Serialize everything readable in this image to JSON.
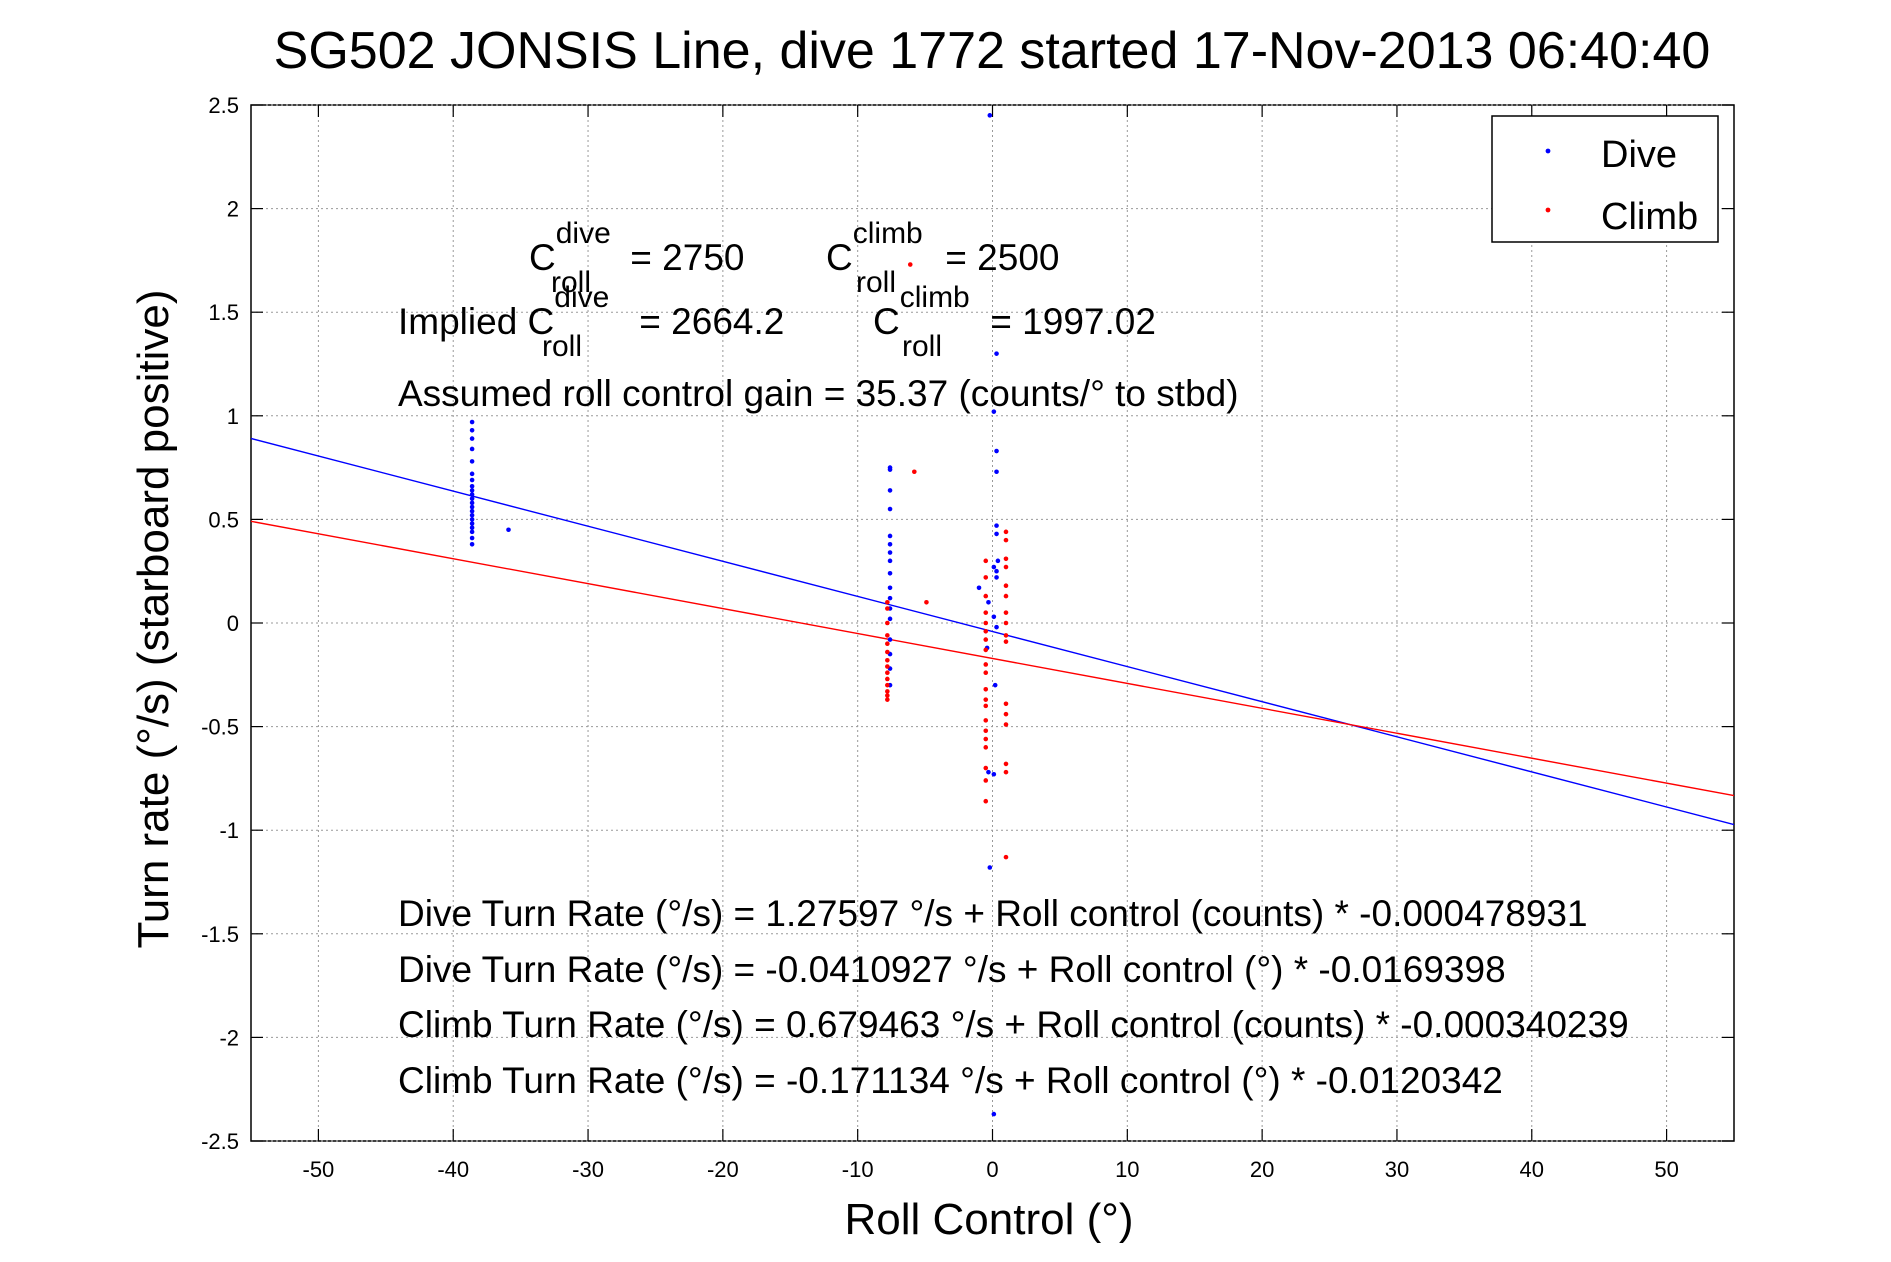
{
  "chart_data": {
    "type": "scatter",
    "title": "SG502 JONSIS Line, dive 1772 started 17-Nov-2013 06:40:40",
    "xlabel": "Roll Control (°)",
    "ylabel": "Turn rate (°/s) (starboard positive)",
    "xlim": [
      -55,
      55
    ],
    "ylim": [
      -2.5,
      2.5
    ],
    "x_ticks": [
      "-50",
      "-40",
      "-30",
      "-20",
      "-10",
      "0",
      "10",
      "20",
      "30",
      "40",
      "50"
    ],
    "y_ticks": [
      "2.5",
      "2",
      "1.5",
      "1",
      "0.5",
      "0",
      "-0.5",
      "-1",
      "-1.5",
      "-2",
      "-2.5"
    ],
    "grid": true,
    "legend_position": "top-right",
    "series": [
      {
        "name": "Dive",
        "color": "#0000ff",
        "points": [
          [
            -38.6,
            0.97
          ],
          [
            -38.6,
            0.93
          ],
          [
            -38.6,
            0.89
          ],
          [
            -38.6,
            0.84
          ],
          [
            -38.6,
            0.78
          ],
          [
            -38.6,
            0.72
          ],
          [
            -38.6,
            0.69
          ],
          [
            -38.6,
            0.66
          ],
          [
            -38.6,
            0.64
          ],
          [
            -38.6,
            0.62
          ],
          [
            -38.6,
            0.6
          ],
          [
            -38.6,
            0.58
          ],
          [
            -38.6,
            0.56
          ],
          [
            -38.6,
            0.54
          ],
          [
            -38.6,
            0.52
          ],
          [
            -38.6,
            0.5
          ],
          [
            -38.6,
            0.48
          ],
          [
            -38.6,
            0.46
          ],
          [
            -38.6,
            0.44
          ],
          [
            -38.6,
            0.41
          ],
          [
            -38.6,
            0.38
          ],
          [
            -35.9,
            0.45
          ],
          [
            -7.6,
            0.75
          ],
          [
            -7.6,
            0.74
          ],
          [
            -7.6,
            0.64
          ],
          [
            -7.6,
            0.55
          ],
          [
            -7.6,
            0.42
          ],
          [
            -7.6,
            0.38
          ],
          [
            -7.6,
            0.34
          ],
          [
            -7.6,
            0.3
          ],
          [
            -7.6,
            0.24
          ],
          [
            -7.6,
            0.17
          ],
          [
            -7.6,
            0.12
          ],
          [
            -7.6,
            0.07
          ],
          [
            -7.6,
            0.02
          ],
          [
            -7.6,
            -0.08
          ],
          [
            -7.6,
            -0.15
          ],
          [
            -7.6,
            -0.22
          ],
          [
            -7.6,
            -0.3
          ],
          [
            -0.2,
            2.45
          ],
          [
            0.3,
            1.3
          ],
          [
            0.1,
            1.02
          ],
          [
            0.3,
            0.83
          ],
          [
            0.3,
            0.73
          ],
          [
            0.3,
            0.47
          ],
          [
            0.3,
            0.43
          ],
          [
            0.4,
            0.3
          ],
          [
            0.1,
            0.27
          ],
          [
            0.3,
            0.25
          ],
          [
            0.3,
            0.22
          ],
          [
            -1.0,
            0.17
          ],
          [
            -0.3,
            0.1
          ],
          [
            0.1,
            0.03
          ],
          [
            0.3,
            -0.02
          ],
          [
            -0.4,
            -0.12
          ],
          [
            0.2,
            -0.3
          ],
          [
            -0.3,
            -0.72
          ],
          [
            0.1,
            -0.73
          ],
          [
            -0.2,
            -1.18
          ],
          [
            0.1,
            -2.37
          ]
        ]
      },
      {
        "name": "Climb",
        "color": "#ff0000",
        "points": [
          [
            -5.8,
            0.73
          ],
          [
            -4.9,
            0.1
          ],
          [
            -6.1,
            1.73
          ],
          [
            -7.8,
            0.1
          ],
          [
            -7.8,
            0.07
          ],
          [
            -7.8,
            0.0
          ],
          [
            -7.8,
            -0.06
          ],
          [
            -7.8,
            -0.1
          ],
          [
            -7.8,
            -0.14
          ],
          [
            -7.8,
            -0.18
          ],
          [
            -7.8,
            -0.21
          ],
          [
            -7.8,
            -0.24
          ],
          [
            -7.8,
            -0.27
          ],
          [
            -7.8,
            -0.3
          ],
          [
            -7.8,
            -0.33
          ],
          [
            -7.8,
            -0.35
          ],
          [
            -7.8,
            -0.37
          ],
          [
            -0.5,
            0.3
          ],
          [
            -0.5,
            0.22
          ],
          [
            -0.5,
            0.13
          ],
          [
            -0.5,
            0.05
          ],
          [
            -0.5,
            0.0
          ],
          [
            -0.5,
            -0.04
          ],
          [
            -0.5,
            -0.08
          ],
          [
            -0.5,
            -0.13
          ],
          [
            -0.5,
            -0.2
          ],
          [
            -0.5,
            -0.24
          ],
          [
            -0.5,
            -0.32
          ],
          [
            -0.5,
            -0.37
          ],
          [
            -0.5,
            -0.4
          ],
          [
            -0.5,
            -0.47
          ],
          [
            -0.5,
            -0.52
          ],
          [
            -0.5,
            -0.56
          ],
          [
            -0.5,
            -0.6
          ],
          [
            -0.5,
            -0.7
          ],
          [
            -0.5,
            -0.76
          ],
          [
            -0.5,
            -0.86
          ],
          [
            1.0,
            0.44
          ],
          [
            1.0,
            0.4
          ],
          [
            1.0,
            0.31
          ],
          [
            1.0,
            0.27
          ],
          [
            1.0,
            0.18
          ],
          [
            1.0,
            0.13
          ],
          [
            1.0,
            0.05
          ],
          [
            1.0,
            0.0
          ],
          [
            1.0,
            -0.06
          ],
          [
            1.0,
            -0.09
          ],
          [
            1.0,
            -0.39
          ],
          [
            1.0,
            -0.44
          ],
          [
            1.0,
            -0.49
          ],
          [
            1.0,
            -0.68
          ],
          [
            1.0,
            -0.72
          ],
          [
            1.0,
            -1.13
          ]
        ]
      }
    ],
    "fit_lines": [
      {
        "series": "Dive",
        "color": "#0000ff",
        "intercept": -0.0410927,
        "slope": -0.0169398
      },
      {
        "series": "Climb",
        "color": "#ff0000",
        "intercept": -0.171134,
        "slope": -0.0120342
      }
    ],
    "annotations": {
      "c_roll_dive": {
        "C": "C",
        "sup": "dive",
        "sub": "roll",
        "value": " = 2750"
      },
      "c_roll_climb": {
        "C": "C",
        "sup": "climb",
        "sub": "roll",
        "value": " = 2500"
      },
      "implied_dive": {
        "prefix": "Implied C",
        "sup": "dive",
        "sub": "roll",
        "value": " = 2664.2"
      },
      "implied_climb": {
        "C": "C",
        "sup": "climb",
        "sub": "roll",
        "value": " = 1997.02"
      },
      "gain": "Assumed roll control gain = 35.37 (counts/° to stbd)",
      "equations": [
        "Dive Turn Rate (°/s) = 1.27597 °/s + Roll control (counts) * -0.000478931",
        "Dive Turn Rate (°/s) = -0.0410927 °/s + Roll control (°) * -0.0169398",
        "Climb Turn Rate (°/s) = 0.679463 °/s + Roll control (counts) * -0.000340239",
        "Climb Turn Rate (°/s) = -0.171134 °/s + Roll control (°) * -0.0120342"
      ]
    }
  }
}
